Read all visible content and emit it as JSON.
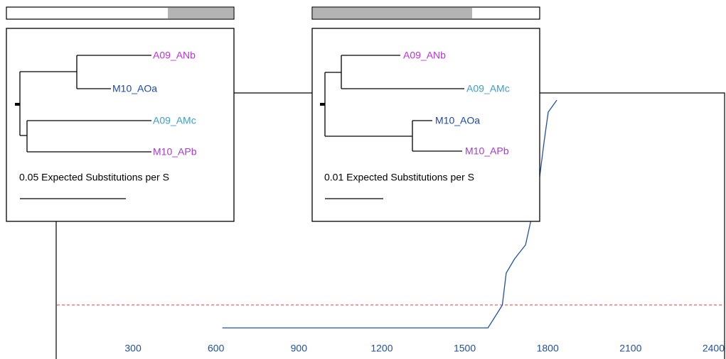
{
  "chart_data": {
    "type": "line",
    "x": [
      623,
      1584,
      1620,
      1636,
      1650,
      1680,
      1720,
      1767,
      1787,
      1802,
      1833
    ],
    "values": [
      0.117,
      0.117,
      0.176,
      0.203,
      0.323,
      0.376,
      0.429,
      0.651,
      0.816,
      0.928,
      0.973
    ],
    "color": "#2050b0",
    "threshold": 0.203,
    "threshold_color": "#f06060",
    "xlim": [
      22,
      2440
    ],
    "xticks": [
      300,
      600,
      900,
      1200,
      1500,
      1800,
      2100,
      2400
    ],
    "ylim": [
      0,
      1
    ]
  },
  "trees": [
    {
      "labels": [
        "A09_ANb",
        "M10_AOa",
        "A09_AMc",
        "M10_APb"
      ],
      "scale_label": "0.05 Expected Substitutions per S"
    },
    {
      "labels": [
        "A09_ANb",
        "A09_AMc",
        "M10_AOa",
        "M10_APb"
      ],
      "scale_label": "0.01 Expected Substitutions per S"
    }
  ]
}
